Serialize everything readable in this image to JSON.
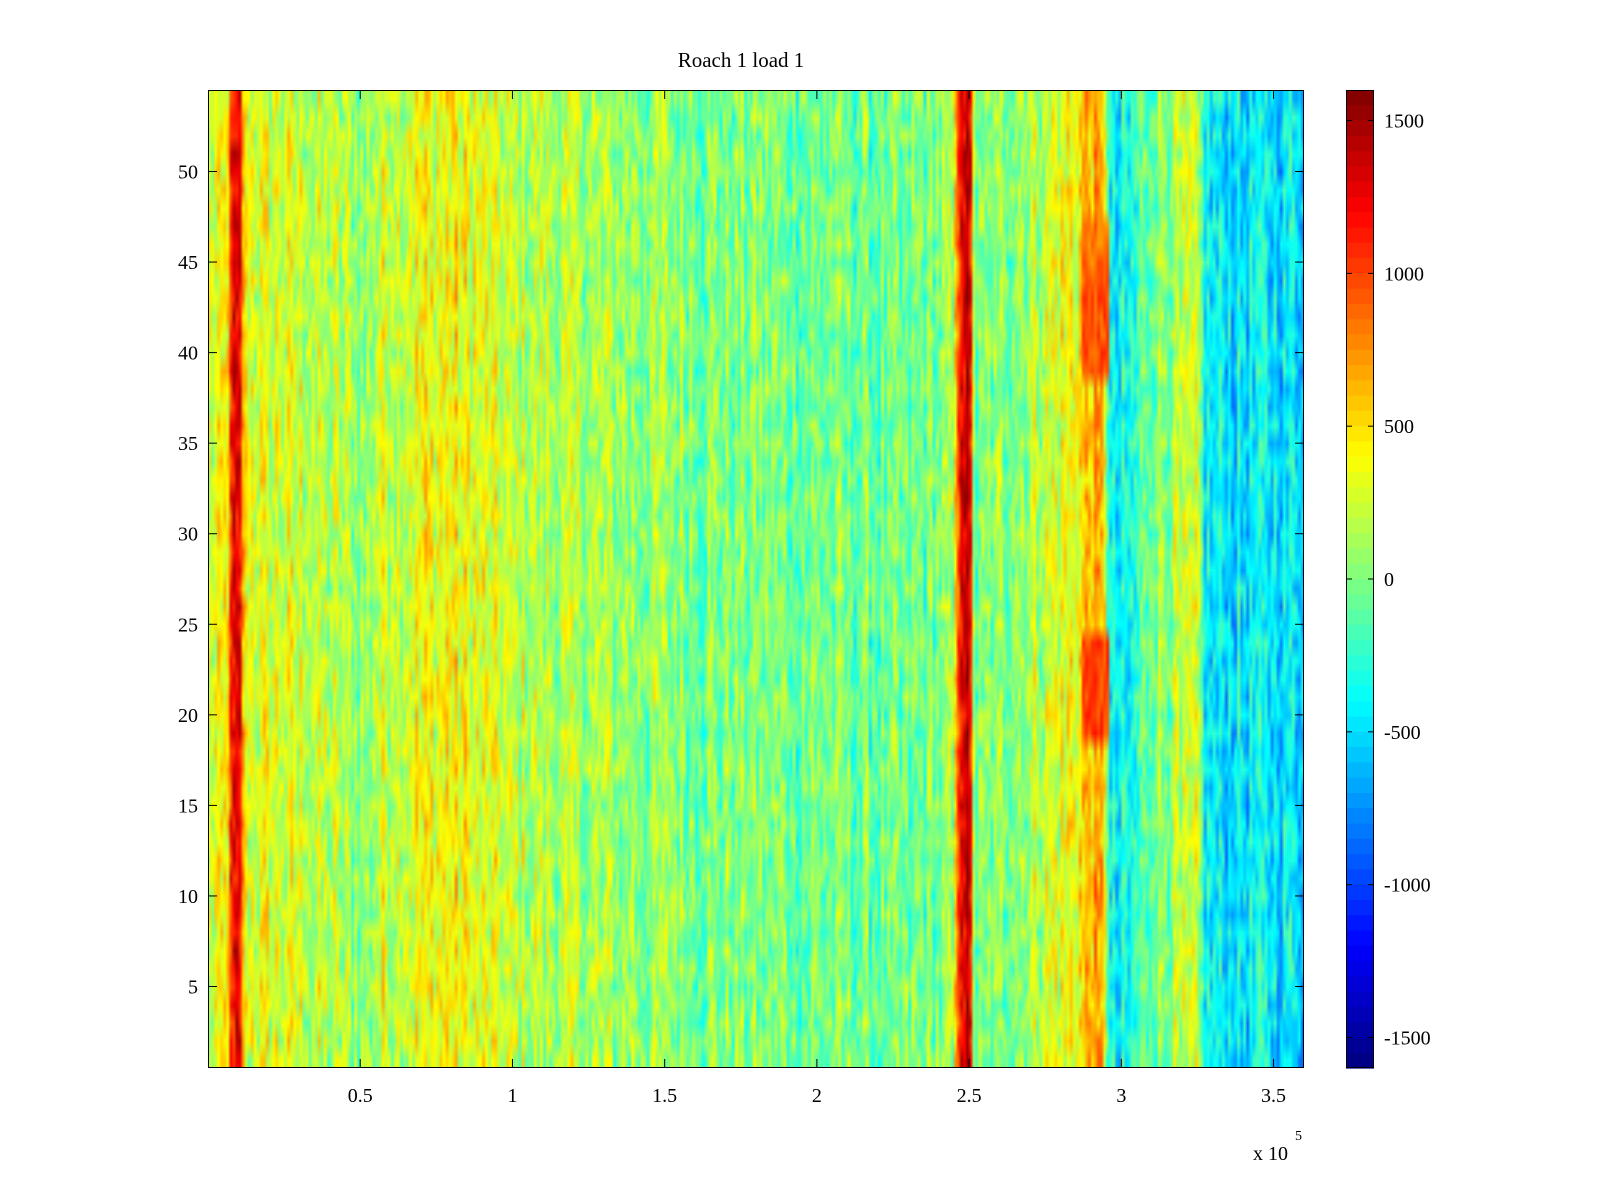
{
  "chart_data": {
    "type": "heatmap",
    "title": "Roach 1 load 1",
    "xlabel": "",
    "ylabel": "",
    "x_range": [
      0,
      360000
    ],
    "y_range": [
      0.5,
      54.5
    ],
    "x_ticks": [
      50000,
      100000,
      150000,
      200000,
      250000,
      300000,
      350000
    ],
    "x_tick_labels": [
      "0.5",
      "1",
      "1.5",
      "2",
      "2.5",
      "3",
      "3.5"
    ],
    "x_multiplier_label": "x 10",
    "x_multiplier_exponent": "5",
    "y_ticks": [
      5,
      10,
      15,
      20,
      25,
      30,
      35,
      40,
      45,
      50
    ],
    "y_tick_labels": [
      "5",
      "10",
      "15",
      "20",
      "25",
      "30",
      "35",
      "40",
      "45",
      "50"
    ],
    "rows": 54,
    "columns": 360,
    "colormap": "jet",
    "colorbar": {
      "range": [
        -1600,
        1600
      ],
      "ticks": [
        1500,
        1000,
        500,
        0,
        -500,
        -1000,
        -1500
      ],
      "tick_labels": [
        "1500",
        "1000",
        "500",
        "0",
        "-500",
        "-1000",
        "-1500"
      ],
      "placement": "right"
    },
    "column_profile": [
      {
        "x": 0,
        "value": 200
      },
      {
        "x": 6000,
        "value": 350
      },
      {
        "x": 8000,
        "value": 1150
      },
      {
        "x": 10500,
        "value": 1150
      },
      {
        "x": 12500,
        "value": 300
      },
      {
        "x": 30000,
        "value": 250
      },
      {
        "x": 52000,
        "value": 50
      },
      {
        "x": 56000,
        "value": 250
      },
      {
        "x": 80000,
        "value": 400
      },
      {
        "x": 100000,
        "value": 200
      },
      {
        "x": 130000,
        "value": 100
      },
      {
        "x": 170000,
        "value": 0
      },
      {
        "x": 210000,
        "value": -50
      },
      {
        "x": 230000,
        "value": -100
      },
      {
        "x": 245000,
        "value": 50
      },
      {
        "x": 247000,
        "value": 1400
      },
      {
        "x": 250000,
        "value": 1400
      },
      {
        "x": 252000,
        "value": -100
      },
      {
        "x": 270000,
        "value": 150
      },
      {
        "x": 285000,
        "value": 400
      },
      {
        "x": 290000,
        "value": 650
      },
      {
        "x": 295000,
        "value": 500
      },
      {
        "x": 296000,
        "value": -500
      },
      {
        "x": 303000,
        "value": -400
      },
      {
        "x": 310000,
        "value": 50
      },
      {
        "x": 325000,
        "value": 150
      },
      {
        "x": 328000,
        "value": -450
      },
      {
        "x": 360000,
        "value": -450
      }
    ],
    "hotspots": [
      {
        "x": [
          287000,
          296000
        ],
        "rows": [
          19,
          24
        ],
        "value": 1000
      },
      {
        "x": [
          287000,
          296000
        ],
        "rows": [
          39,
          44
        ],
        "value": 950
      },
      {
        "x": [
          287000,
          296000
        ],
        "rows": [
          45,
          47
        ],
        "value": 850
      }
    ],
    "noise_amplitude": 420
  }
}
